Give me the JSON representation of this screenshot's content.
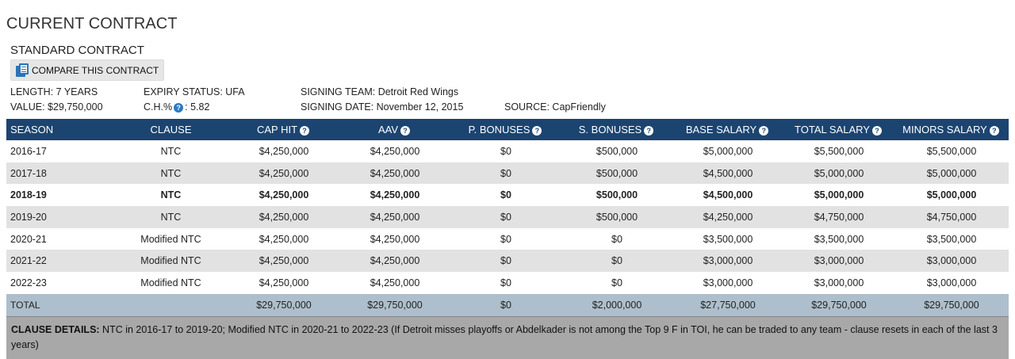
{
  "section": {
    "title": "CURRENT CONTRACT",
    "contract_type": "STANDARD CONTRACT",
    "compare_label": "COMPARE THIS CONTRACT"
  },
  "meta": {
    "length": "LENGTH: 7 YEARS",
    "value": "VALUE: $29,750,000",
    "expiry_status": "EXPIRY STATUS: UFA",
    "ch_label": "C.H.%",
    "ch_value": "5.82",
    "signing_team": "SIGNING TEAM: Detroit Red Wings",
    "signing_date": "SIGNING DATE: November 12, 2015",
    "source": "SOURCE: CapFriendly"
  },
  "table": {
    "columns": [
      "SEASON",
      "CLAUSE",
      "CAP HIT",
      "AAV",
      "P. BONUSES",
      "S. BONUSES",
      "BASE SALARY",
      "TOTAL SALARY",
      "MINORS SALARY"
    ],
    "rows": [
      [
        "2016-17",
        "NTC",
        "$4,250,000",
        "$4,250,000",
        "$0",
        "$500,000",
        "$5,000,000",
        "$5,500,000",
        "$5,500,000"
      ],
      [
        "2017-18",
        "NTC",
        "$4,250,000",
        "$4,250,000",
        "$0",
        "$500,000",
        "$4,500,000",
        "$5,000,000",
        "$5,000,000"
      ],
      [
        "2018-19",
        "NTC",
        "$4,250,000",
        "$4,250,000",
        "$0",
        "$500,000",
        "$4,500,000",
        "$5,000,000",
        "$5,000,000"
      ],
      [
        "2019-20",
        "NTC",
        "$4,250,000",
        "$4,250,000",
        "$0",
        "$500,000",
        "$4,250,000",
        "$4,750,000",
        "$4,750,000"
      ],
      [
        "2020-21",
        "Modified NTC",
        "$4,250,000",
        "$4,250,000",
        "$0",
        "$0",
        "$3,500,000",
        "$3,500,000",
        "$3,500,000"
      ],
      [
        "2021-22",
        "Modified NTC",
        "$4,250,000",
        "$4,250,000",
        "$0",
        "$0",
        "$3,000,000",
        "$3,000,000",
        "$3,000,000"
      ],
      [
        "2022-23",
        "Modified NTC",
        "$4,250,000",
        "$4,250,000",
        "$0",
        "$0",
        "$3,000,000",
        "$3,000,000",
        "$3,000,000"
      ]
    ],
    "total": [
      "TOTAL",
      "",
      "$29,750,000",
      "$29,750,000",
      "$0",
      "$2,000,000",
      "$27,750,000",
      "$29,750,000",
      "$29,750,000"
    ]
  },
  "clause_details": {
    "label": "CLAUSE DETAILS:",
    "text": " NTC in 2016-17 to 2019-20; Modified NTC in 2020-21 to 2022-23 (If Detroit misses playoffs or Abdelkader is not among the Top 9 F in TOI, he can be traded to any team - clause resets in each of the last 3 years)"
  },
  "colors": {
    "header_bg": "#1c4470",
    "alt_row_bg": "#e2e2e2",
    "total_row_bg": "#adbfcc",
    "clause_bg": "#a8a8a8",
    "help_icon": "#2a79c7"
  },
  "icons": {
    "compare": "documents-icon",
    "help": "question-circle-icon"
  }
}
